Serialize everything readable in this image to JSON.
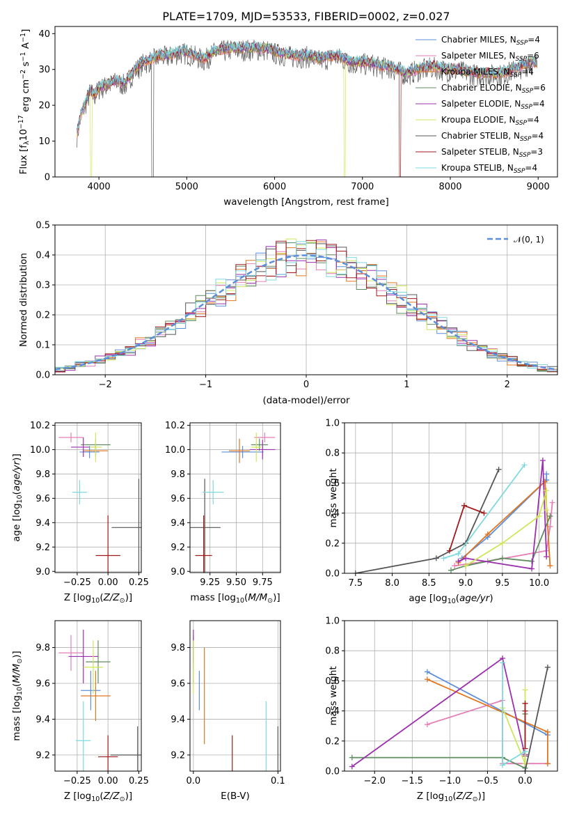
{
  "title": "PLATE=1709, MJD=53533, FIBERID=0002, z=0.027",
  "colors": {
    "chabrier_miles": "#5b8fdc",
    "salpeter_miles": "#e57fb6",
    "kroupa_miles": "#e1761e",
    "chabrier_elodie": "#5f8c5f",
    "salpeter_elodie": "#9b2fae",
    "kroupa_elodie": "#cfe65a",
    "chabrier_stelib": "#555555",
    "salpeter_stelib": "#a11a1a",
    "kroupa_stelib": "#7fd9dd",
    "normal": "#5b8fdc",
    "grid": "#b0b0b0"
  },
  "chart_data": [
    {
      "id": "spectrum",
      "type": "line",
      "xlabel": "wavelength [Angstrom, rest frame]",
      "ylabel": "Flux [f",
      "xlim": [
        3500,
        9220
      ],
      "ylim": [
        0,
        42
      ],
      "xticks": [
        4000,
        5000,
        6000,
        7000,
        8000,
        9000
      ],
      "yticks": [
        0,
        10,
        20,
        30,
        40
      ],
      "grid": false,
      "legend_position": "top-right",
      "legend": [
        {
          "key": "chabrier_miles",
          "text": "Chabrier MILES, N",
          "sub": "SSP",
          "tail": "=4"
        },
        {
          "key": "salpeter_miles",
          "text": "Salpeter MILES, N",
          "sub": "SSP",
          "tail": "=6"
        },
        {
          "key": "kroupa_miles",
          "text": "Kroupa MILES, N",
          "sub": "SSP",
          "tail": "=4"
        },
        {
          "key": "chabrier_elodie",
          "text": "Chabrier ELODIE, N",
          "sub": "SSP",
          "tail": "=6"
        },
        {
          "key": "salpeter_elodie",
          "text": "Salpeter ELODIE, N",
          "sub": "SSP",
          "tail": "=4"
        },
        {
          "key": "kroupa_elodie",
          "text": "Kroupa ELODIE, N",
          "sub": "SSP",
          "tail": "=4"
        },
        {
          "key": "chabrier_stelib",
          "text": "Chabrier STELIB, N",
          "sub": "SSP",
          "tail": "=4"
        },
        {
          "key": "salpeter_stelib",
          "text": "Salpeter STELIB, N",
          "sub": "SSP",
          "tail": "=3"
        },
        {
          "key": "kroupa_stelib",
          "text": "Kroupa STELIB, N",
          "sub": "SSP",
          "tail": "=4"
        }
      ],
      "continuum_points": [
        [
          3750,
          12
        ],
        [
          3800,
          18
        ],
        [
          3850,
          21
        ],
        [
          3900,
          24
        ],
        [
          3950,
          23
        ],
        [
          4000,
          25
        ],
        [
          4100,
          26
        ],
        [
          4200,
          27
        ],
        [
          4300,
          26
        ],
        [
          4400,
          30
        ],
        [
          4500,
          32
        ],
        [
          4600,
          33
        ],
        [
          4700,
          34
        ],
        [
          4800,
          34
        ],
        [
          4900,
          35
        ],
        [
          5000,
          35
        ],
        [
          5100,
          34
        ],
        [
          5200,
          33
        ],
        [
          5300,
          35
        ],
        [
          5400,
          35.5
        ],
        [
          5500,
          36
        ],
        [
          5600,
          36
        ],
        [
          5700,
          36
        ],
        [
          5800,
          36
        ],
        [
          5900,
          36
        ],
        [
          6000,
          35
        ],
        [
          6100,
          34.5
        ],
        [
          6200,
          34
        ],
        [
          6300,
          34
        ],
        [
          6400,
          34
        ],
        [
          6500,
          33
        ],
        [
          6600,
          33.5
        ],
        [
          6700,
          34
        ],
        [
          6800,
          33
        ],
        [
          6900,
          32
        ],
        [
          7000,
          32
        ],
        [
          7100,
          32
        ],
        [
          7200,
          31
        ],
        [
          7300,
          31
        ],
        [
          7400,
          30
        ],
        [
          7500,
          29
        ],
        [
          7600,
          30
        ],
        [
          7700,
          30.5
        ],
        [
          7800,
          31
        ],
        [
          7900,
          30.5
        ],
        [
          8000,
          30
        ],
        [
          8100,
          30
        ],
        [
          8200,
          29.5
        ],
        [
          8300,
          29
        ],
        [
          8400,
          29
        ],
        [
          8500,
          29
        ],
        [
          8600,
          29
        ],
        [
          8700,
          30
        ],
        [
          8800,
          31
        ],
        [
          8900,
          32
        ],
        [
          9000,
          32
        ]
      ]
    },
    {
      "id": "residuals",
      "type": "bar",
      "xlabel": "(data-model)/error",
      "ylabel": "Normed distribution",
      "xlim": [
        -2.5,
        2.5
      ],
      "ylim": [
        0,
        0.5
      ],
      "xticks": [
        -2,
        -1,
        0,
        1,
        2
      ],
      "yticks": [
        0.0,
        0.1,
        0.2,
        0.3,
        0.4,
        0.5
      ],
      "grid": true,
      "legend_position": "top-right",
      "legend": [
        {
          "key": "normal",
          "text": "𝒩(0, 1)"
        }
      ],
      "bin_width": 0.1
    },
    {
      "id": "age_vs_Z",
      "type": "scatter",
      "xlabel": "Z [log",
      "ylabel": "age  [log",
      "xlim": [
        -0.43,
        0.27
      ],
      "ylim": [
        8.99,
        10.22
      ],
      "xticks": [
        -0.25,
        0.0,
        0.25
      ],
      "xticklabels": [
        "−0.25",
        "0.00",
        "0.25"
      ],
      "yticks": [
        9.0,
        9.2,
        9.4,
        9.6,
        9.8,
        10.0,
        10.2
      ],
      "grid": true,
      "points": [
        {
          "key": "chabrier_miles",
          "x": -0.15,
          "y": 9.98,
          "xerr": 0.08,
          "yerr": 0.05
        },
        {
          "key": "salpeter_miles",
          "x": -0.3,
          "y": 10.1,
          "xerr": 0.1,
          "yerr": 0.04
        },
        {
          "key": "kroupa_miles",
          "x": -0.1,
          "y": 9.99,
          "xerr": 0.1,
          "yerr": 0.05
        },
        {
          "key": "chabrier_elodie",
          "x": -0.1,
          "y": 10.04,
          "xerr": 0.12,
          "yerr": 0.05
        },
        {
          "key": "salpeter_elodie",
          "x": -0.2,
          "y": 10.02,
          "xerr": 0.1,
          "yerr": 0.08
        },
        {
          "key": "kroupa_elodie",
          "x": -0.1,
          "y": 10.02,
          "xerr": 0.05,
          "yerr": 0.12
        },
        {
          "key": "chabrier_stelib",
          "x": 0.25,
          "y": 9.36,
          "xerr": 0.22,
          "yerr": 0.4
        },
        {
          "key": "salpeter_stelib",
          "x": 0.0,
          "y": 9.13,
          "xerr": 0.1,
          "yerr": 0.33
        },
        {
          "key": "kroupa_stelib",
          "x": -0.23,
          "y": 9.65,
          "xerr": 0.06,
          "yerr": 0.1
        }
      ]
    },
    {
      "id": "age_vs_mass",
      "type": "scatter",
      "xlabel": "mass [log",
      "ylabel": "",
      "xlim": [
        9.06,
        9.92
      ],
      "ylim": [
        8.99,
        10.22
      ],
      "xticks": [
        9.25,
        9.5,
        9.75
      ],
      "xticklabels": [
        "9.25",
        "9.50",
        "9.75"
      ],
      "yticks": [
        9.0,
        9.2,
        9.4,
        9.6,
        9.8,
        10.0,
        10.2
      ],
      "grid": true,
      "points": [
        {
          "key": "chabrier_miles",
          "x": 9.56,
          "y": 9.98,
          "xerr": 0.2,
          "yerr": 0.05
        },
        {
          "key": "salpeter_miles",
          "x": 9.77,
          "y": 10.1,
          "xerr": 0.1,
          "yerr": 0.04
        },
        {
          "key": "kroupa_miles",
          "x": 9.53,
          "y": 9.99,
          "xerr": 0.1,
          "yerr": 0.1
        },
        {
          "key": "chabrier_elodie",
          "x": 9.72,
          "y": 10.04,
          "xerr": 0.08,
          "yerr": 0.05
        },
        {
          "key": "salpeter_elodie",
          "x": 9.75,
          "y": 10.0,
          "xerr": 0.12,
          "yerr": 0.08
        },
        {
          "key": "kroupa_elodie",
          "x": 9.69,
          "y": 10.02,
          "xerr": 0.05,
          "yerr": 0.12
        },
        {
          "key": "chabrier_stelib",
          "x": 9.2,
          "y": 9.36,
          "xerr": 0.15,
          "yerr": 0.4
        },
        {
          "key": "salpeter_stelib",
          "x": 9.19,
          "y": 9.13,
          "xerr": 0.08,
          "yerr": 0.33
        },
        {
          "key": "kroupa_stelib",
          "x": 9.28,
          "y": 9.65,
          "xerr": 0.1,
          "yerr": 0.1
        }
      ]
    },
    {
      "id": "weight_vs_age",
      "type": "line",
      "xlabel": "age  [log",
      "ylabel": "mass weight",
      "xlim": [
        7.35,
        10.25
      ],
      "ylim": [
        0,
        1.0
      ],
      "xticks": [
        7.5,
        8.0,
        8.5,
        9.0,
        9.5,
        10.0
      ],
      "yticks": [
        0.0,
        0.2,
        0.4,
        0.6,
        0.8,
        1.0
      ],
      "grid": true,
      "series": [
        {
          "key": "chabrier_miles",
          "x": [
            8.95,
            9.3,
            10.1,
            10.1
          ],
          "y": [
            0.1,
            0.24,
            0.62,
            0.66
          ]
        },
        {
          "key": "salpeter_miles",
          "x": [
            8.85,
            9.3,
            10.1,
            10.15,
            10.18
          ],
          "y": [
            0.05,
            0.08,
            0.15,
            0.31,
            0.47
          ]
        },
        {
          "key": "kroupa_miles",
          "x": [
            8.9,
            9.3,
            10.08,
            10.15
          ],
          "y": [
            0.07,
            0.26,
            0.61,
            0.05
          ]
        },
        {
          "key": "chabrier_elodie",
          "x": [
            8.8,
            9.0,
            9.5,
            9.9,
            10.15
          ],
          "y": [
            0.02,
            0.05,
            0.1,
            0.08,
            0.38
          ]
        },
        {
          "key": "salpeter_elodie",
          "x": [
            8.9,
            9.0,
            9.9,
            10.05,
            10.1
          ],
          "y": [
            0.08,
            0.1,
            0.03,
            0.75,
            0.11
          ]
        },
        {
          "key": "kroupa_elodie",
          "x": [
            9.0,
            9.5,
            10.0,
            10.1,
            10.1
          ],
          "y": [
            0.05,
            0.2,
            0.38,
            0.55,
            0.42
          ]
        },
        {
          "key": "chabrier_stelib",
          "x": [
            7.5,
            8.6,
            9.0,
            9.45
          ],
          "y": [
            0.0,
            0.1,
            0.2,
            0.69
          ]
        },
        {
          "key": "salpeter_stelib",
          "x": [
            8.78,
            8.98,
            9.25
          ],
          "y": [
            0.15,
            0.45,
            0.4
          ]
        },
        {
          "key": "kroupa_stelib",
          "x": [
            8.7,
            8.9,
            9.8
          ],
          "y": [
            0.1,
            0.13,
            0.72
          ]
        }
      ]
    },
    {
      "id": "mass_vs_Z",
      "type": "scatter",
      "xlabel": "Z [log",
      "ylabel": "mass [log",
      "xlim": [
        -0.43,
        0.27
      ],
      "ylim": [
        9.11,
        9.95
      ],
      "xticks": [
        -0.25,
        0.0,
        0.25
      ],
      "xticklabels": [
        "−0.25",
        "0.00",
        "0.25"
      ],
      "yticks": [
        9.2,
        9.4,
        9.6,
        9.8
      ],
      "grid": true,
      "points": [
        {
          "key": "chabrier_miles",
          "x": -0.14,
          "y": 9.56,
          "xerr": 0.08,
          "yerr": 0.11
        },
        {
          "key": "salpeter_miles",
          "x": -0.3,
          "y": 9.77,
          "xerr": 0.1,
          "yerr": 0.1
        },
        {
          "key": "kroupa_miles",
          "x": -0.1,
          "y": 9.53,
          "xerr": 0.12,
          "yerr": 0.14
        },
        {
          "key": "chabrier_elodie",
          "x": -0.08,
          "y": 9.72,
          "xerr": 0.1,
          "yerr": 0.12
        },
        {
          "key": "salpeter_elodie",
          "x": -0.2,
          "y": 9.75,
          "xerr": 0.12,
          "yerr": 0.15
        },
        {
          "key": "kroupa_elodie",
          "x": -0.12,
          "y": 9.69,
          "xerr": 0.08,
          "yerr": 0.15
        },
        {
          "key": "chabrier_stelib",
          "x": 0.24,
          "y": 9.2,
          "xerr": 0.22,
          "yerr": 0.16
        },
        {
          "key": "salpeter_stelib",
          "x": 0.0,
          "y": 9.19,
          "xerr": 0.08,
          "yerr": 0.12
        },
        {
          "key": "kroupa_stelib",
          "x": -0.2,
          "y": 9.28,
          "xerr": 0.06,
          "yerr": 0.22
        }
      ]
    },
    {
      "id": "mass_vs_ebv",
      "type": "scatter",
      "xlabel": "E(B-V)",
      "ylabel": "",
      "xlim": [
        -0.004,
        0.103
      ],
      "ylim": [
        9.11,
        9.95
      ],
      "xticks": [
        0.0,
        0.1
      ],
      "xticklabels": [
        "0.0",
        "0.1"
      ],
      "yticks": [
        9.2,
        9.4,
        9.6,
        9.8
      ],
      "grid": true,
      "points": [
        {
          "key": "chabrier_miles",
          "x": 0.007,
          "y": 9.56,
          "xerr": 0,
          "yerr": 0.11
        },
        {
          "key": "salpeter_miles",
          "x": 0.0,
          "y": 9.77,
          "xerr": 0,
          "yerr": 0.1
        },
        {
          "key": "kroupa_miles",
          "x": 0.013,
          "y": 9.53,
          "xerr": 0,
          "yerr": 0.27
        },
        {
          "key": "chabrier_elodie",
          "x": 0.0,
          "y": 9.72,
          "xerr": 0,
          "yerr": 0.12
        },
        {
          "key": "salpeter_elodie",
          "x": 0.0,
          "y": 9.81,
          "xerr": 0,
          "yerr": 0.09
        },
        {
          "key": "kroupa_elodie",
          "x": 0.0,
          "y": 9.69,
          "xerr": 0,
          "yerr": 0.15
        },
        {
          "key": "chabrier_stelib",
          "x": 0.1,
          "y": 9.2,
          "xerr": 0,
          "yerr": 0.16
        },
        {
          "key": "salpeter_stelib",
          "x": 0.046,
          "y": 9.19,
          "xerr": 0,
          "yerr": 0.12
        },
        {
          "key": "kroupa_stelib",
          "x": 0.086,
          "y": 9.28,
          "xerr": 0,
          "yerr": 0.22
        }
      ]
    },
    {
      "id": "weight_vs_Z",
      "type": "line",
      "xlabel": "Z [log",
      "ylabel": "mass weight",
      "xlim": [
        -2.4,
        0.43
      ],
      "ylim": [
        0,
        1.0
      ],
      "xticks": [
        -2.0,
        -1.5,
        -1.0,
        -0.5,
        0.0
      ],
      "xticklabels": [
        "−2.0",
        "−1.5",
        "−1.0",
        "−0.5",
        "0.0"
      ],
      "yticks": [
        0.0,
        0.2,
        0.4,
        0.6,
        0.8,
        1.0
      ],
      "grid": true,
      "series": [
        {
          "key": "chabrier_miles",
          "x": [
            -1.3,
            0.3,
            0.3
          ],
          "y": [
            0.66,
            0.24,
            0.26
          ]
        },
        {
          "key": "salpeter_miles",
          "x": [
            -1.3,
            -0.3,
            -0.3,
            0.3
          ],
          "y": [
            0.31,
            0.47,
            0.05,
            0.05
          ]
        },
        {
          "key": "kroupa_miles",
          "x": [
            -1.3,
            0.3,
            0.3
          ],
          "y": [
            0.61,
            0.26,
            0.05
          ]
        },
        {
          "key": "chabrier_elodie",
          "x": [
            -2.3,
            -0.3,
            0.0,
            0.0
          ],
          "y": [
            0.09,
            0.09,
            0.02,
            0.38
          ]
        },
        {
          "key": "salpeter_elodie",
          "x": [
            -2.3,
            -0.3,
            0.0,
            0.0
          ],
          "y": [
            0.03,
            0.75,
            0.1,
            0.11
          ]
        },
        {
          "key": "kroupa_elodie",
          "x": [
            -0.3,
            0.0,
            0.0
          ],
          "y": [
            0.42,
            0.05,
            0.54
          ]
        },
        {
          "key": "chabrier_stelib",
          "x": [
            0.0,
            0.3
          ],
          "y": [
            0.0,
            0.69
          ]
        },
        {
          "key": "salpeter_stelib",
          "x": [
            0.0,
            0.0,
            0.0
          ],
          "y": [
            0.45,
            0.15,
            0.4
          ]
        },
        {
          "key": "kroupa_stelib",
          "x": [
            -0.3,
            -0.3,
            0.0
          ],
          "y": [
            0.72,
            0.04,
            0.13
          ]
        }
      ]
    }
  ]
}
